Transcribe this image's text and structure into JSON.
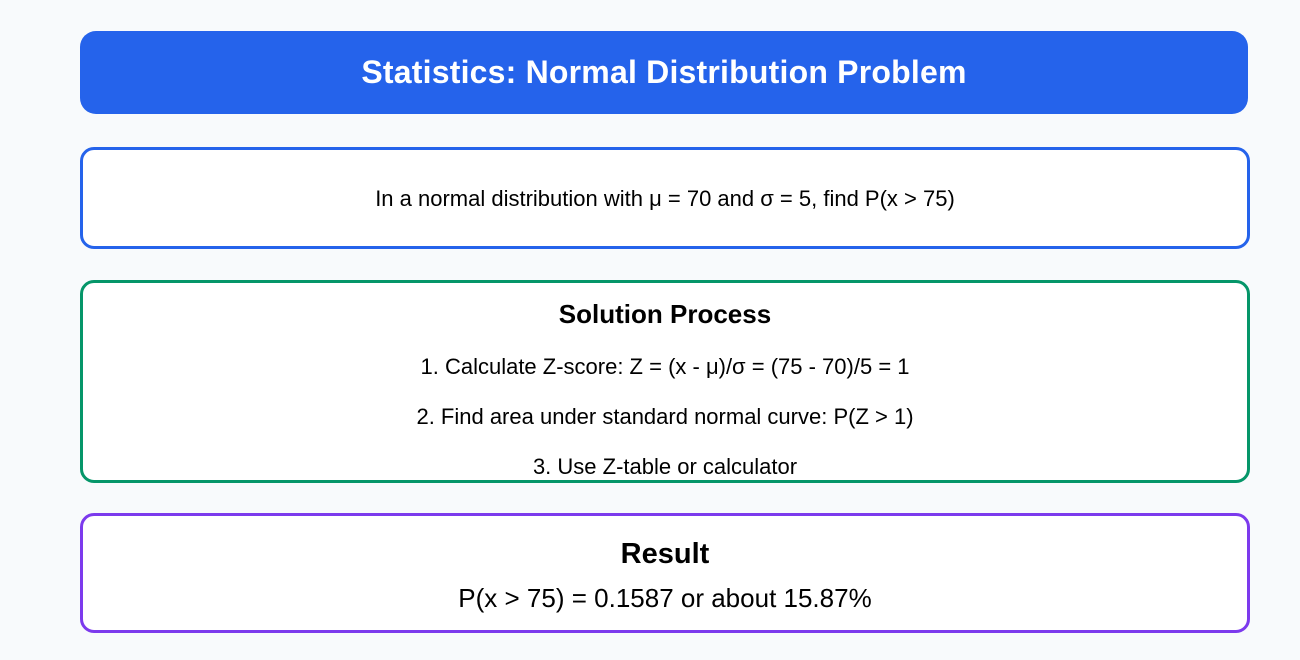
{
  "header": {
    "title": "Statistics: Normal Distribution Problem"
  },
  "problem": {
    "text": "In a normal distribution with μ = 70 and σ = 5, find P(x > 75)"
  },
  "solution": {
    "heading": "Solution Process",
    "steps": [
      "1. Calculate Z-score: Z = (x - μ)/σ = (75 - 70)/5 = 1",
      "2. Find area under standard normal curve: P(Z > 1)",
      "3. Use Z-table or calculator"
    ]
  },
  "result": {
    "heading": "Result",
    "value": "P(x > 75) = 0.1587 or about 15.87%"
  },
  "colors": {
    "background": "#f8fafc",
    "title_bar": "#2563eb",
    "problem_border": "#2563eb",
    "solution_border": "#059669",
    "result_border": "#7c3aed"
  }
}
